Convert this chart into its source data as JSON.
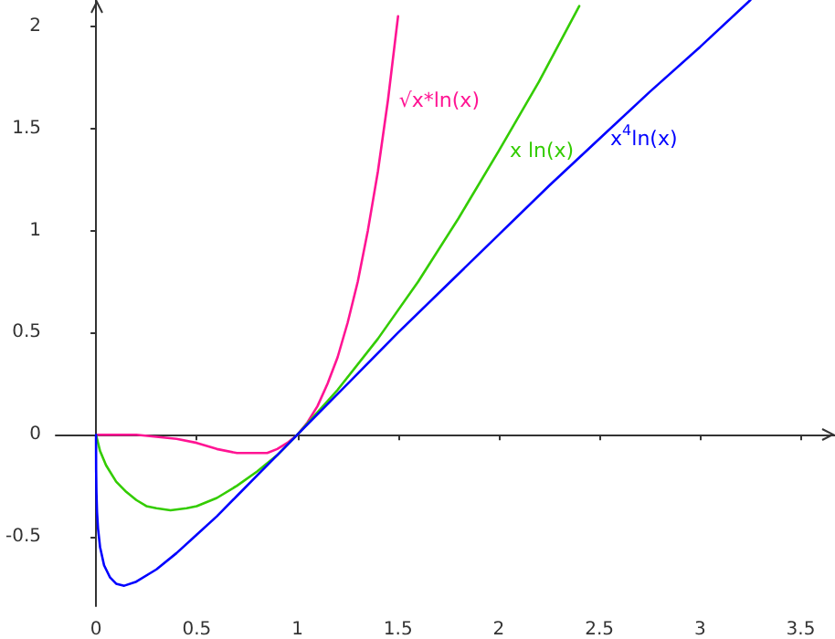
{
  "chart_data": {
    "type": "line",
    "marker": "none",
    "legend": false,
    "xlim": [
      -0.2,
      3.67
    ],
    "ylim": [
      -0.84,
      2.13
    ],
    "xticks": [
      0,
      0.5,
      1,
      1.5,
      2,
      2.5,
      3,
      3.5
    ],
    "yticks": [
      -0.5,
      0,
      0.5,
      1,
      1.5,
      2
    ],
    "series": [
      {
        "name": "√x*ln(x)",
        "color": "#ff1493",
        "x": [
          0,
          0.2,
          0.3,
          0.4,
          0.5,
          0.6,
          0.7,
          0.78,
          0.85,
          0.9,
          0.95,
          1,
          1.05,
          1.1,
          1.15,
          1.2,
          1.25,
          1.3,
          1.35,
          1.4,
          1.45,
          1.5
        ],
        "values": [
          0,
          0,
          -0.01,
          -0.02,
          -0.04,
          -0.07,
          -0.09,
          -0.09,
          -0.09,
          -0.07,
          -0.04,
          0,
          0.06,
          0.14,
          0.25,
          0.38,
          0.55,
          0.75,
          1.0,
          1.29,
          1.64,
          2.05
        ]
      },
      {
        "name": "x ln(x)",
        "color": "#33cc00",
        "x": [
          0,
          0.02,
          0.05,
          0.1,
          0.15,
          0.2,
          0.25,
          0.3,
          0.37,
          0.45,
          0.5,
          0.6,
          0.7,
          0.8,
          0.9,
          1,
          1.2,
          1.4,
          1.6,
          1.8,
          2,
          2.2,
          2.4
        ],
        "values": [
          0,
          -0.08,
          -0.15,
          -0.23,
          -0.28,
          -0.32,
          -0.35,
          -0.36,
          -0.37,
          -0.36,
          -0.35,
          -0.31,
          -0.25,
          -0.18,
          -0.1,
          0,
          0.22,
          0.47,
          0.75,
          1.06,
          1.39,
          1.73,
          2.1
        ]
      },
      {
        "name": "x$^{4}$ln(x)",
        "color": "#0000ff",
        "x": [
          0,
          0.0005,
          0.002,
          0.005,
          0.01,
          0.02,
          0.04,
          0.07,
          0.1,
          0.14,
          0.2,
          0.3,
          0.4,
          0.5,
          0.6,
          0.7,
          0.8,
          0.9,
          1,
          1.25,
          1.5,
          1.75,
          2,
          2.25,
          2.5,
          2.75,
          3,
          3.25
        ],
        "values": [
          0,
          -0.17,
          -0.28,
          -0.38,
          -0.46,
          -0.55,
          -0.64,
          -0.7,
          -0.73,
          -0.74,
          -0.72,
          -0.66,
          -0.58,
          -0.49,
          -0.4,
          -0.3,
          -0.2,
          -0.1,
          0,
          0.25,
          0.5,
          0.74,
          0.98,
          1.22,
          1.45,
          1.68,
          1.9,
          2.13
        ]
      }
    ]
  }
}
